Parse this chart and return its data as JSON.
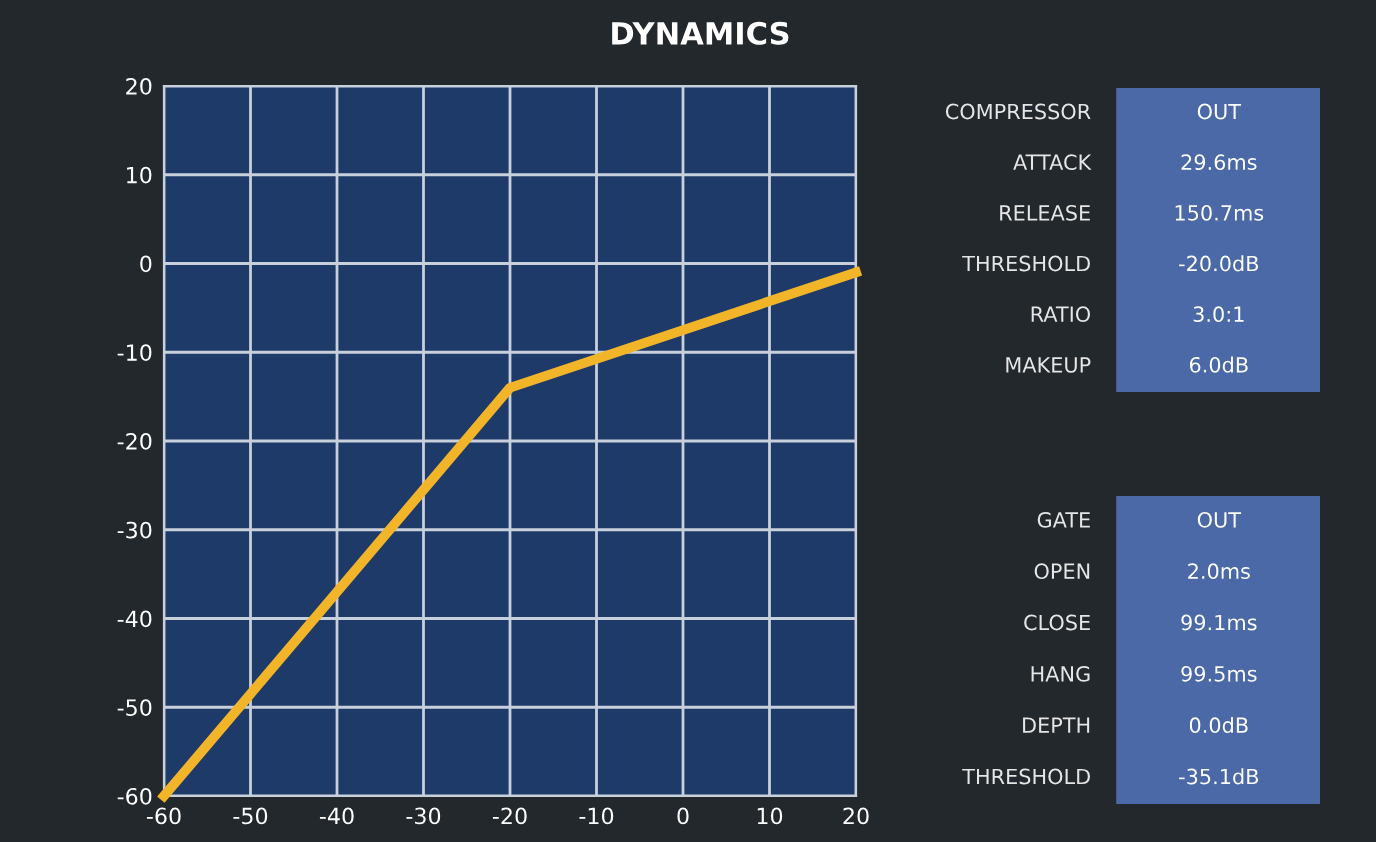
{
  "chart_data": [
    {
      "type": "line",
      "title": "DYNAMICS",
      "x": [
        -60,
        -20,
        20
      ],
      "series": [
        {
          "color": "#f2b52a",
          "values": [
            -60,
            -14,
            -1
          ]
        }
      ],
      "xlim": [
        -60,
        20
      ],
      "xticks": [
        -60,
        -50,
        -40,
        -30,
        -20,
        -10,
        0,
        10,
        20
      ],
      "ylim": [
        -60,
        20
      ],
      "yticks": [
        -60,
        -50,
        -40,
        -30,
        -20,
        -10,
        0,
        10,
        20
      ],
      "grid": true,
      "marker": "none",
      "line_style": "solid"
    },
    {
      "type": "other",
      "annotations": [
        "COMPRESSOR",
        "OUT",
        "ATTACK",
        "29.6ms",
        "RELEASE",
        "150.7ms",
        "THRESHOLD",
        "-20.0dB",
        "RATIO",
        "3.0:1",
        "MAKEUP",
        "6.0dB"
      ]
    },
    {
      "type": "other",
      "annotations": [
        "GATE",
        "OUT",
        "OPEN",
        "2.0ms",
        "CLOSE",
        "99.1ms",
        "HANG",
        "99.5ms",
        "DEPTH",
        "0.0dB",
        "THRESHOLD",
        "-35.1dB"
      ]
    }
  ]
}
